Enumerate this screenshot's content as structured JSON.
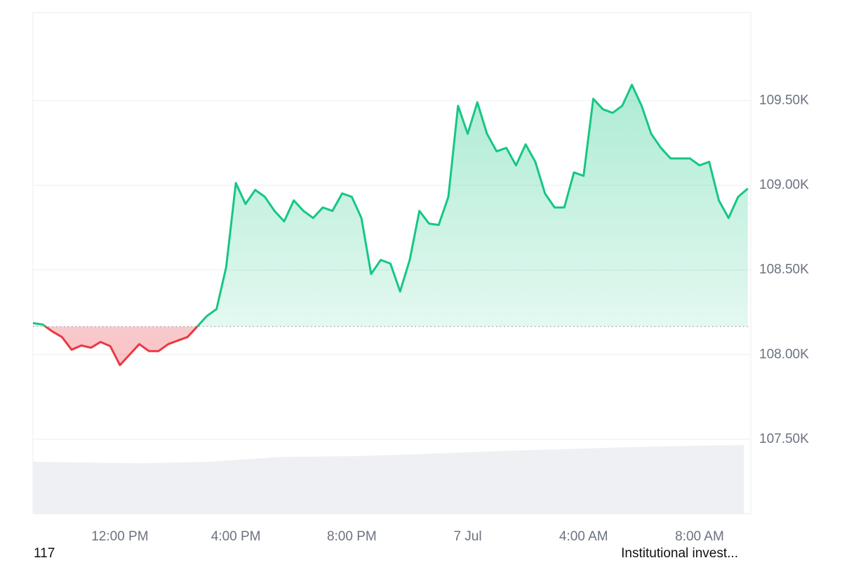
{
  "chart_data": {
    "type": "line",
    "x": [
      9,
      9.333,
      9.667,
      10,
      10.333,
      10.667,
      11,
      11.333,
      11.667,
      12,
      12.333,
      12.667,
      13,
      13.333,
      13.667,
      14,
      14.333,
      14.667,
      15,
      15.333,
      15.667,
      16,
      16.333,
      16.667,
      17,
      17.333,
      17.667,
      18,
      18.333,
      18.667,
      19,
      19.333,
      19.667,
      20,
      20.333,
      20.667,
      21,
      21.333,
      21.667,
      22,
      22.333,
      22.667,
      23,
      23.333,
      23.667,
      24,
      24.333,
      24.667,
      25,
      25.333,
      25.667,
      26,
      26.333,
      26.667,
      27,
      27.333,
      27.667,
      28,
      28.333,
      28.667,
      29,
      29.333,
      29.667,
      30,
      30.333,
      30.667,
      31,
      31.333,
      31.667,
      32,
      32.333,
      32.667,
      33,
      33.333,
      33.667
    ],
    "values": [
      108186,
      108178,
      108137,
      108104,
      108029,
      108054,
      108041,
      108075,
      108050,
      107938,
      108000,
      108062,
      108021,
      108021,
      108062,
      108083,
      108104,
      108166,
      108228,
      108269,
      108518,
      109014,
      108890,
      108973,
      108932,
      108849,
      108787,
      108911,
      108849,
      108807,
      108869,
      108849,
      108952,
      108932,
      108807,
      108476,
      108559,
      108538,
      108373,
      108559,
      108849,
      108774,
      108766,
      108932,
      109470,
      109304,
      109490,
      109304,
      109201,
      109221,
      109118,
      109242,
      109139,
      108952,
      108869,
      108869,
      109076,
      109056,
      109511,
      109449,
      109428,
      109470,
      109594,
      109470,
      109304,
      109221,
      109159,
      109159,
      109159,
      109118,
      109139,
      108911,
      108807,
      108932,
      108981
    ],
    "baseline": 108166,
    "colors": {
      "above": "#16c784",
      "below": "#ea3943"
    },
    "xlim": [
      9,
      33.72
    ],
    "xticks": [
      {
        "value": 12,
        "label": "12:00 PM"
      },
      {
        "value": 16,
        "label": "4:00 PM"
      },
      {
        "value": 20,
        "label": "8:00 PM"
      },
      {
        "value": 24,
        "label": "7 Jul"
      },
      {
        "value": 28,
        "label": "4:00 AM"
      },
      {
        "value": 32,
        "label": "8:00 AM"
      }
    ],
    "ylim": [
      107060,
      110020
    ],
    "yticks": [
      {
        "value": 107500,
        "label": "107.50K"
      },
      {
        "value": 108000,
        "label": "108.00K"
      },
      {
        "value": 108500,
        "label": "108.50K"
      },
      {
        "value": 109000,
        "label": "109.00K"
      },
      {
        "value": 109500,
        "label": "109.50K"
      }
    ],
    "grid": true
  },
  "footer": {
    "left": "117",
    "right": "Institutional invest..."
  }
}
